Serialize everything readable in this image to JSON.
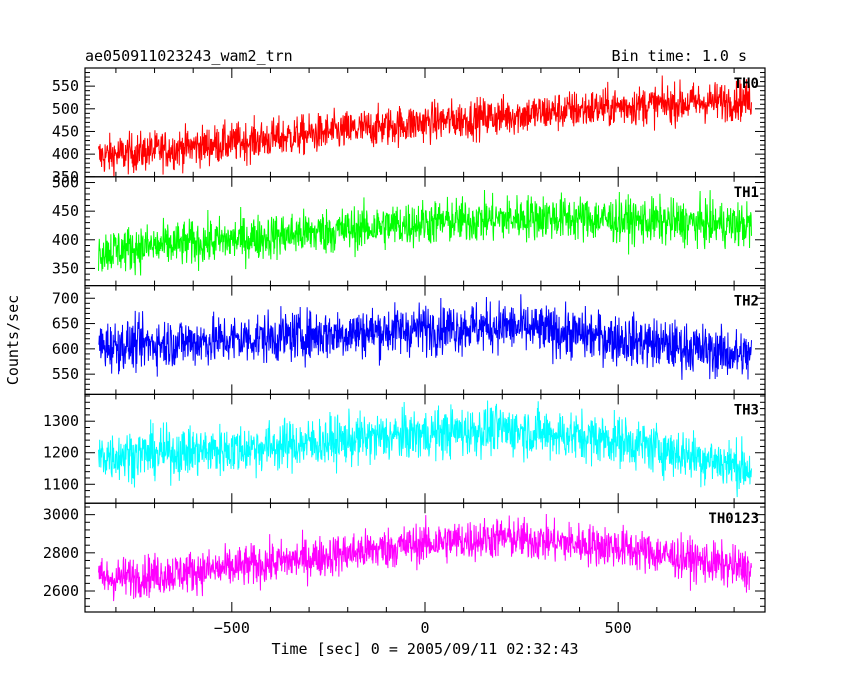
{
  "header": {
    "title": "ae050911023243_wam2_trn",
    "bin_time": "Bin time: 1.0 s"
  },
  "axes": {
    "xlabel": "Time [sec] 0 = 2005/09/11 02:32:43",
    "ylabel": "Counts/sec"
  },
  "chart_data": {
    "type": "line",
    "x_range": [
      -880,
      880
    ],
    "x_ticks": [
      -500,
      0,
      500
    ],
    "x_data_range": [
      -845,
      845
    ],
    "grid": false,
    "panels": [
      {
        "name": "TH0",
        "color": "#ff0000",
        "ylim": [
          350,
          590
        ],
        "yticks": [
          350,
          400,
          450,
          500,
          550
        ],
        "trend": [
          [
            -845,
            395
          ],
          [
            -500,
            425
          ],
          [
            0,
            470
          ],
          [
            500,
            505
          ],
          [
            845,
            520
          ]
        ],
        "noise": 22
      },
      {
        "name": "TH1",
        "color": "#00ff00",
        "ylim": [
          320,
          510
        ],
        "yticks": [
          350,
          400,
          450,
          500
        ],
        "trend": [
          [
            -845,
            380
          ],
          [
            -500,
            400
          ],
          [
            0,
            430
          ],
          [
            300,
            440
          ],
          [
            845,
            425
          ]
        ],
        "noise": 20
      },
      {
        "name": "TH2",
        "color": "#0000ff",
        "ylim": [
          510,
          725
        ],
        "yticks": [
          550,
          600,
          650,
          700
        ],
        "trend": [
          [
            -845,
            605
          ],
          [
            -500,
            618
          ],
          [
            0,
            640
          ],
          [
            200,
            645
          ],
          [
            500,
            620
          ],
          [
            845,
            585
          ]
        ],
        "noise": 25
      },
      {
        "name": "TH3",
        "color": "#00ffff",
        "ylim": [
          1040,
          1385
        ],
        "yticks": [
          1100,
          1200,
          1300
        ],
        "trend": [
          [
            -845,
            1190
          ],
          [
            -500,
            1210
          ],
          [
            0,
            1260
          ],
          [
            200,
            1275
          ],
          [
            500,
            1240
          ],
          [
            845,
            1150
          ]
        ],
        "noise": 40
      },
      {
        "name": "TH0123",
        "color": "#ff00ff",
        "ylim": [
          2490,
          3060
        ],
        "yticks": [
          2600,
          2800,
          3000
        ],
        "trend": [
          [
            -845,
            2660
          ],
          [
            -500,
            2720
          ],
          [
            0,
            2850
          ],
          [
            200,
            2880
          ],
          [
            500,
            2830
          ],
          [
            845,
            2710
          ]
        ],
        "noise": 55
      }
    ]
  }
}
